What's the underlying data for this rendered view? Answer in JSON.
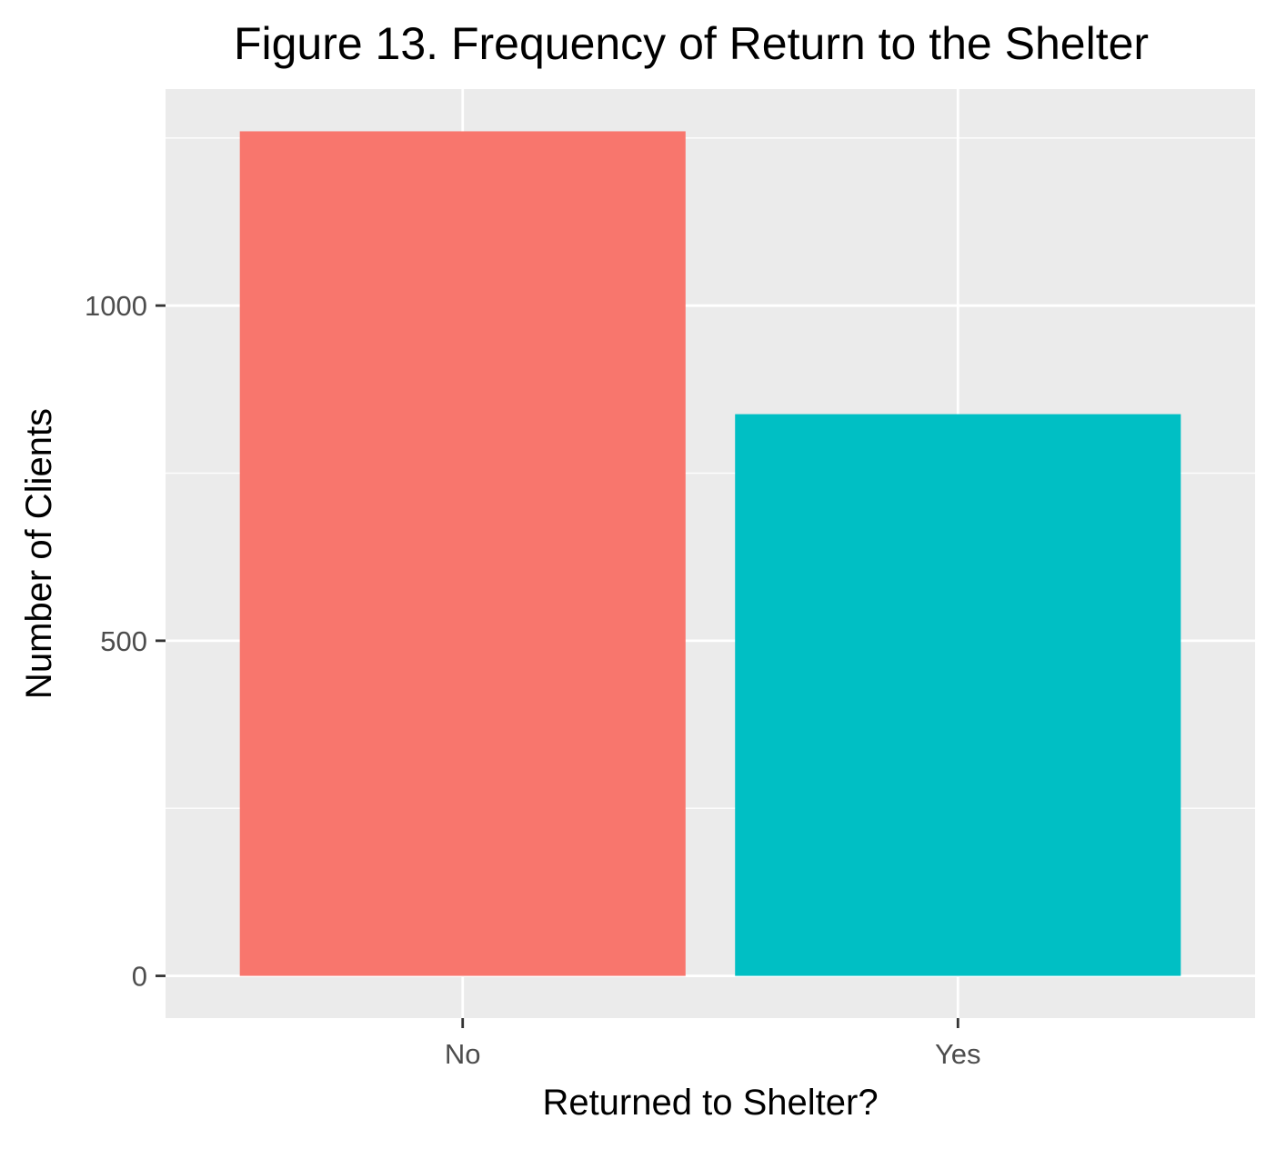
{
  "chart_data": {
    "type": "bar",
    "title": "Figure 13. Frequency of Return to the Shelter",
    "xlabel": "Returned to Shelter?",
    "ylabel": "Number of Clients",
    "categories": [
      "No",
      "Yes"
    ],
    "values": [
      1260,
      838
    ],
    "bar_colors": [
      "#F8766D",
      "#00BFC4"
    ],
    "ylim": [
      -63,
      1323
    ],
    "yticks": [
      0,
      500,
      1000
    ],
    "ytick_labels": [
      "0",
      "500",
      "1000"
    ],
    "y_minor_ticks": [
      250,
      750,
      1250
    ],
    "grid": true,
    "panel_background": "#EBEBEB",
    "gridline_color": "#FFFFFF",
    "legend": "none"
  }
}
